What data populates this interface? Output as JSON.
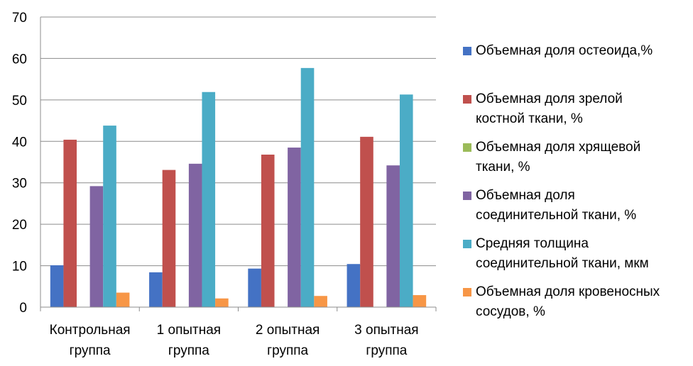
{
  "chart_data": {
    "type": "bar",
    "categories": [
      "Контрольная группа",
      "1 опытная группа",
      "2 опытная группа",
      "3 опытная группа"
    ],
    "category_lines": [
      [
        "Контрольная",
        "группа"
      ],
      [
        "1 опытная",
        "группа"
      ],
      [
        "2 опытная",
        "группа"
      ],
      [
        "3 опытная",
        "группа"
      ]
    ],
    "ylim": [
      0,
      70
    ],
    "yticks": [
      0,
      10,
      20,
      30,
      40,
      50,
      60,
      70
    ],
    "grid": true,
    "legend_position": "right",
    "series": [
      {
        "name": "Объемная доля остеоида,%",
        "name_lines": [
          "Объемная доля остеоида,%"
        ],
        "color": "#4472C4",
        "values": [
          10.1,
          8.4,
          9.3,
          10.4
        ]
      },
      {
        "name": "Объемная доля зрелой костной ткани, %",
        "name_lines": [
          "Объемная доля зрелой",
          "костной ткани, %"
        ],
        "color": "#C0504D",
        "values": [
          40.4,
          33.1,
          36.8,
          41.1
        ]
      },
      {
        "name": "Объемная доля хрящевой ткани, %",
        "name_lines": [
          "Объемная доля хрящевой",
          "ткани, %"
        ],
        "color": "#9BBB59",
        "values": [
          0,
          0,
          0,
          0
        ]
      },
      {
        "name": "Объемная доля соединительной ткани, %",
        "name_lines": [
          "Объемная доля",
          "соединительной ткани, %"
        ],
        "color": "#8064A2",
        "values": [
          29.2,
          34.6,
          38.5,
          34.2
        ]
      },
      {
        "name": "Средняя толщина соединительной ткани, мкм",
        "name_lines": [
          "Средняя толщина",
          "соединительной ткани, мкм"
        ],
        "color": "#4BACC6",
        "values": [
          43.8,
          51.9,
          57.7,
          51.3
        ]
      },
      {
        "name": "Объемная доля кровеносных сосудов, %",
        "name_lines": [
          "Объемная доля кровеносных",
          "сосудов, %"
        ],
        "color": "#F79646",
        "values": [
          3.5,
          2.1,
          2.7,
          2.9
        ]
      }
    ]
  }
}
